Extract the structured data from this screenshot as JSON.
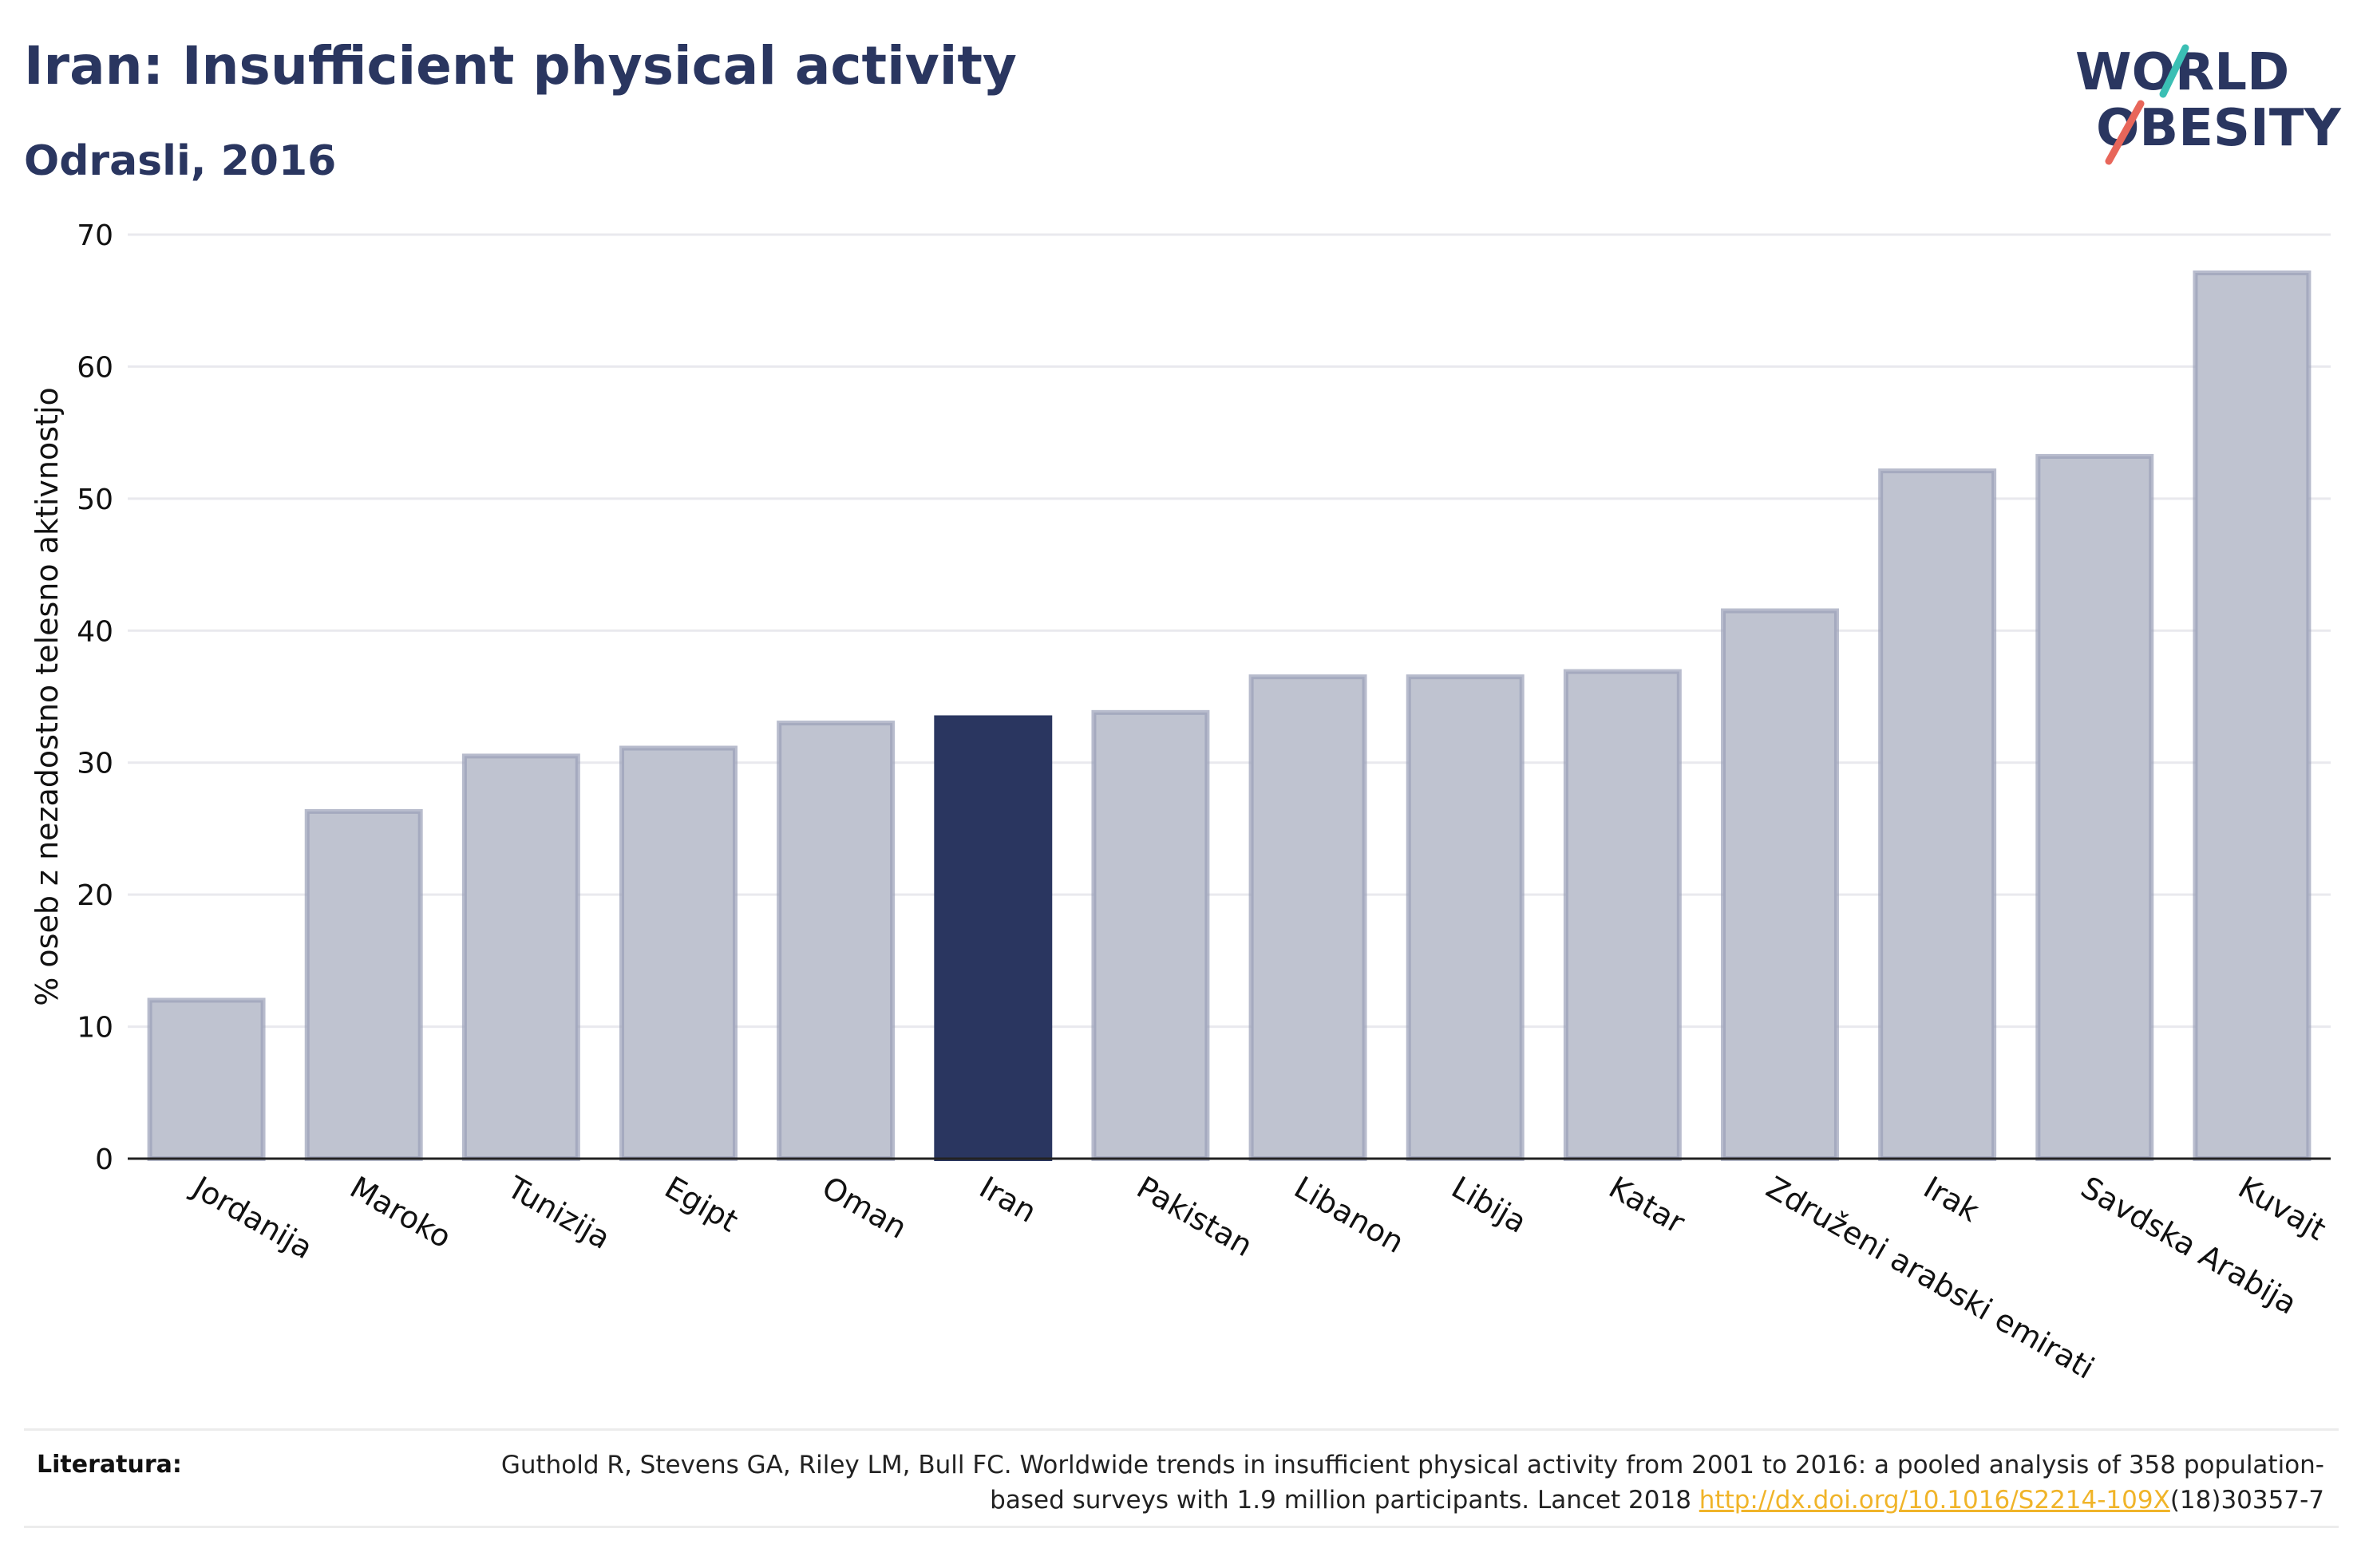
{
  "header": {
    "title": "Iran: Insufficient physical activity",
    "subtitle": "Odrasli, 2016"
  },
  "logo": {
    "line1": "WORLD",
    "line2": "OBESITY",
    "accent_teal": "#3bbfb4",
    "accent_red": "#e8665a",
    "text_color": "#2a3660"
  },
  "chart_data": {
    "type": "bar",
    "categories": [
      "Jordanija",
      "Maroko",
      "Tunizija",
      "Egipt",
      "Oman",
      "Iran",
      "Pakistan",
      "Libanon",
      "Libija",
      "Katar",
      "Združeni arabski emirati",
      "Irak",
      "Savdska Arabija",
      "Kuvajt"
    ],
    "values": [
      12.0,
      26.3,
      30.5,
      31.1,
      33.0,
      33.4,
      33.8,
      36.5,
      36.5,
      36.9,
      41.5,
      52.1,
      53.2,
      67.1
    ],
    "highlight": "Iran",
    "ylabel": "% oseb z nezadostno telesno aktivnostjo",
    "xlabel": "",
    "ylim": [
      0,
      70
    ],
    "yticks": [
      0,
      10,
      20,
      30,
      40,
      50,
      60,
      70
    ],
    "grid": true,
    "colors": {
      "bar": "#bfc3d0",
      "bar_edge": "#9aa0b8",
      "highlight": "#2a3660"
    }
  },
  "footer": {
    "label": "Literatura:",
    "text_before": "Guthold R, Stevens GA, Riley LM, Bull FC. Worldwide trends in insufficient physical activity from 2001 to 2016: a pooled analysis of 358 population-based surveys with 1.9 million participants. Lancet 2018 ",
    "link": "http://dx.doi.org/10.1016/S2214-109X",
    "text_after": "(18)30357-7"
  }
}
